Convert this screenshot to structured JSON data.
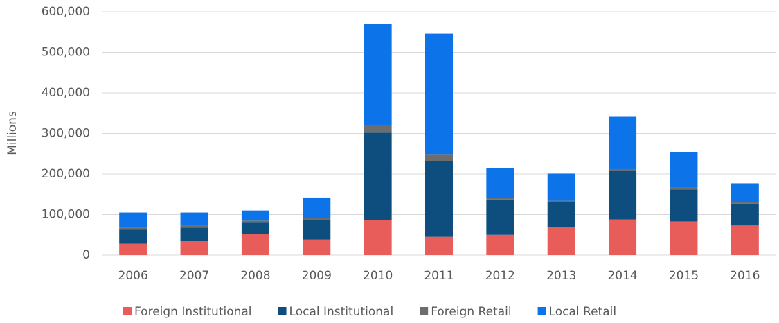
{
  "chart_data": {
    "type": "stacked-bar",
    "y_label": "Millions",
    "categories": [
      "2006",
      "2007",
      "2008",
      "2009",
      "2010",
      "2011",
      "2012",
      "2013",
      "2014",
      "2015",
      "2016"
    ],
    "series": [
      {
        "name": "Foreign Institutional",
        "color": "#e85c5a",
        "values": [
          28000,
          35000,
          53000,
          38000,
          87000,
          45000,
          50000,
          69000,
          88000,
          83000,
          73000
        ]
      },
      {
        "name": "Local Institutional",
        "color": "#0d4e7e",
        "values": [
          35000,
          33000,
          27000,
          48000,
          215000,
          187000,
          87000,
          61000,
          120000,
          79000,
          54000
        ]
      },
      {
        "name": "Foreign Retail",
        "color": "#6d6d6d",
        "values": [
          4000,
          4000,
          5000,
          6000,
          18000,
          17000,
          4000,
          4000,
          4000,
          4000,
          3000
        ]
      },
      {
        "name": "Local Retail",
        "color": "#0d73e8",
        "values": [
          38000,
          33000,
          25000,
          50000,
          250000,
          297000,
          73000,
          67000,
          129000,
          87000,
          47000
        ]
      }
    ],
    "ylim": [
      0,
      600000
    ],
    "yticks": [
      0,
      {
        "value": 100000,
        "label": "100,000"
      },
      {
        "value": 200000,
        "label": "200,000"
      },
      {
        "value": 300000,
        "label": "300,000"
      },
      {
        "value": 400000,
        "label": "400,000"
      },
      {
        "value": 500000,
        "label": "500,000"
      },
      {
        "value": 600000,
        "label": "600,000"
      }
    ],
    "grid": true,
    "legend": "bottom"
  }
}
